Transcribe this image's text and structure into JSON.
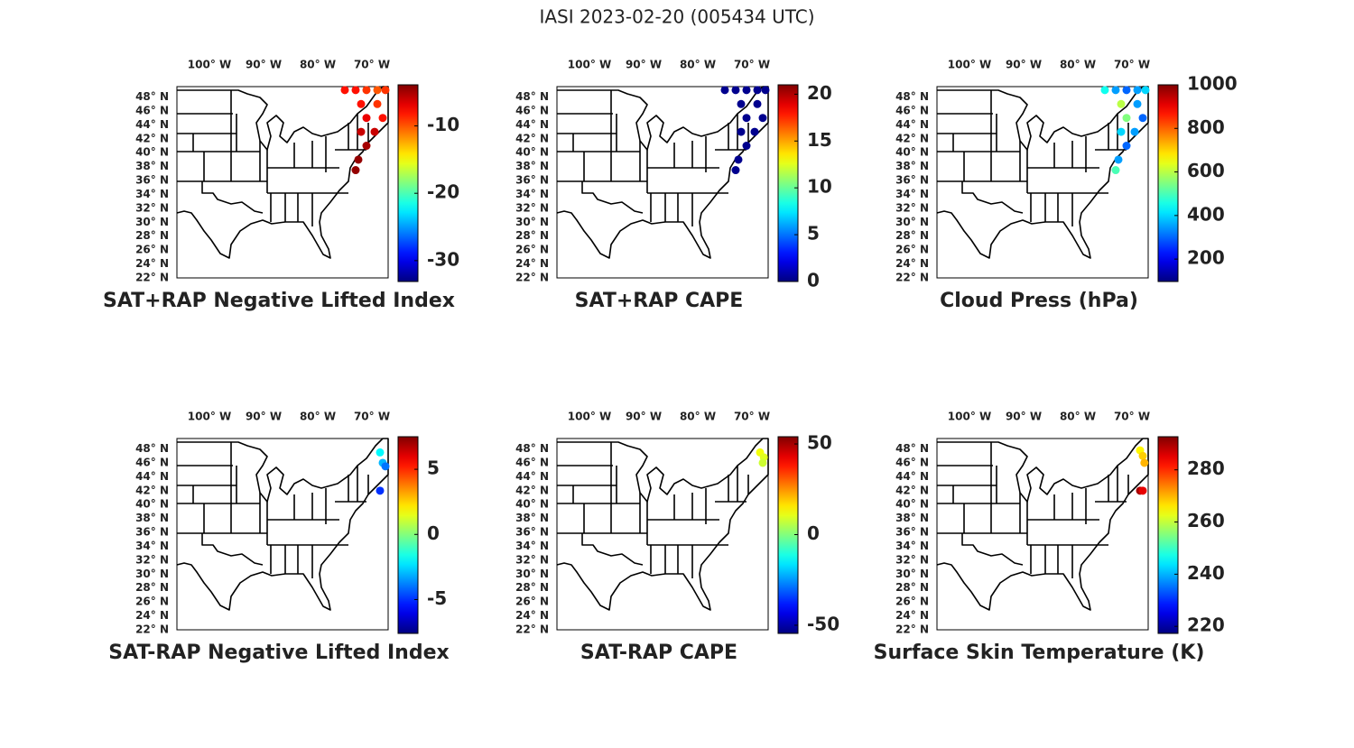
{
  "title": "IASI 2023-02-20 (005434 UTC)",
  "map": {
    "xlim": [
      -106,
      -67
    ],
    "ylim": [
      22,
      49.5
    ],
    "xticks": [
      {
        "value": -100,
        "label": "100° W"
      },
      {
        "value": -90,
        "label": "90° W"
      },
      {
        "value": -80,
        "label": "80° W"
      },
      {
        "value": -70,
        "label": "70° W"
      }
    ],
    "yticks": [
      {
        "value": 22,
        "label": "22° N"
      },
      {
        "value": 24,
        "label": "24° N"
      },
      {
        "value": 26,
        "label": "26° N"
      },
      {
        "value": 28,
        "label": "28° N"
      },
      {
        "value": 30,
        "label": "30° N"
      },
      {
        "value": 32,
        "label": "32° N"
      },
      {
        "value": 34,
        "label": "34° N"
      },
      {
        "value": 36,
        "label": "36° N"
      },
      {
        "value": 38,
        "label": "38° N"
      },
      {
        "value": 40,
        "label": "40° N"
      },
      {
        "value": 42,
        "label": "42° N"
      },
      {
        "value": 44,
        "label": "44° N"
      },
      {
        "value": 46,
        "label": "46° N"
      },
      {
        "value": 48,
        "label": "48° N"
      }
    ],
    "colormap": "jet"
  },
  "panels": [
    {
      "type": "scatter",
      "title": "SAT+RAP Negative Lifted Index",
      "clim": [
        -33.1,
        -3.9
      ],
      "cticks": [
        -30,
        -20,
        -10
      ],
      "x": [
        -75,
        -73,
        -71,
        -69,
        -67.5,
        -72,
        -69,
        -71,
        -68,
        -72,
        -69.5,
        -71,
        -72.5,
        -73
      ],
      "y": [
        49,
        49,
        49,
        49,
        49,
        47,
        47,
        45,
        45,
        43,
        43,
        41,
        39,
        37.5
      ],
      "values": [
        -8,
        -8,
        -9,
        -10,
        -9,
        -8,
        -9,
        -7,
        -8,
        -6,
        -6,
        -5,
        -4.5,
        -4.5
      ]
    },
    {
      "type": "scatter",
      "title": "SAT+RAP CAPE",
      "clim": [
        0,
        21
      ],
      "cticks": [
        0,
        5,
        10,
        15,
        20
      ],
      "x": [
        -75,
        -73,
        -71,
        -69,
        -67.5,
        -72,
        -69,
        -71,
        -68,
        -72,
        -69.5,
        -71,
        -72.5,
        -73
      ],
      "y": [
        49,
        49,
        49,
        49,
        49,
        47,
        47,
        45,
        45,
        43,
        43,
        41,
        39,
        37.5
      ],
      "values": [
        0.3,
        0.3,
        0.3,
        0.3,
        0.3,
        0.3,
        0.3,
        0.3,
        0.3,
        0.3,
        0.3,
        0.3,
        0.3,
        0.3
      ]
    },
    {
      "type": "scatter",
      "title": "Cloud Press (hPa)",
      "clim": [
        97,
        1000
      ],
      "cticks": [
        200,
        400,
        600,
        800,
        1000
      ],
      "x": [
        -75,
        -73,
        -71,
        -69,
        -67.5,
        -72,
        -69,
        -71,
        -68,
        -72,
        -69.5,
        -71,
        -72.5,
        -73
      ],
      "y": [
        49,
        49,
        49,
        49,
        49,
        47,
        47,
        45,
        45,
        43,
        43,
        41,
        39,
        37.5
      ],
      "values": [
        450,
        350,
        300,
        350,
        400,
        600,
        350,
        550,
        300,
        400,
        350,
        300,
        350,
        500
      ]
    },
    {
      "type": "scatter",
      "title": "SAT-RAP Negative Lifted Index",
      "clim": [
        -7.6,
        7.5
      ],
      "cticks": [
        -5,
        0,
        5
      ],
      "x": [
        -68.5,
        -68,
        -67.5,
        -68.5
      ],
      "y": [
        47.5,
        46,
        45.5,
        42
      ],
      "values": [
        -2,
        -3,
        -4,
        -5
      ]
    },
    {
      "type": "scatter",
      "title": "SAT-RAP CAPE",
      "clim": [
        -54.5,
        54
      ],
      "cticks": [
        -50,
        0,
        50
      ],
      "x": [
        -68.5,
        -67.8,
        -68
      ],
      "y": [
        47.5,
        46.8,
        46
      ],
      "values": [
        12,
        10,
        8
      ]
    },
    {
      "type": "scatter",
      "title": "Surface Skin Temperature (K)",
      "clim": [
        217.3,
        292.7
      ],
      "cticks": [
        220,
        240,
        260,
        280
      ],
      "x": [
        -68.5,
        -68,
        -67.7,
        -68.5,
        -68
      ],
      "y": [
        47.8,
        47,
        46,
        42,
        42
      ],
      "values": [
        265,
        268,
        270,
        290,
        285
      ]
    }
  ]
}
